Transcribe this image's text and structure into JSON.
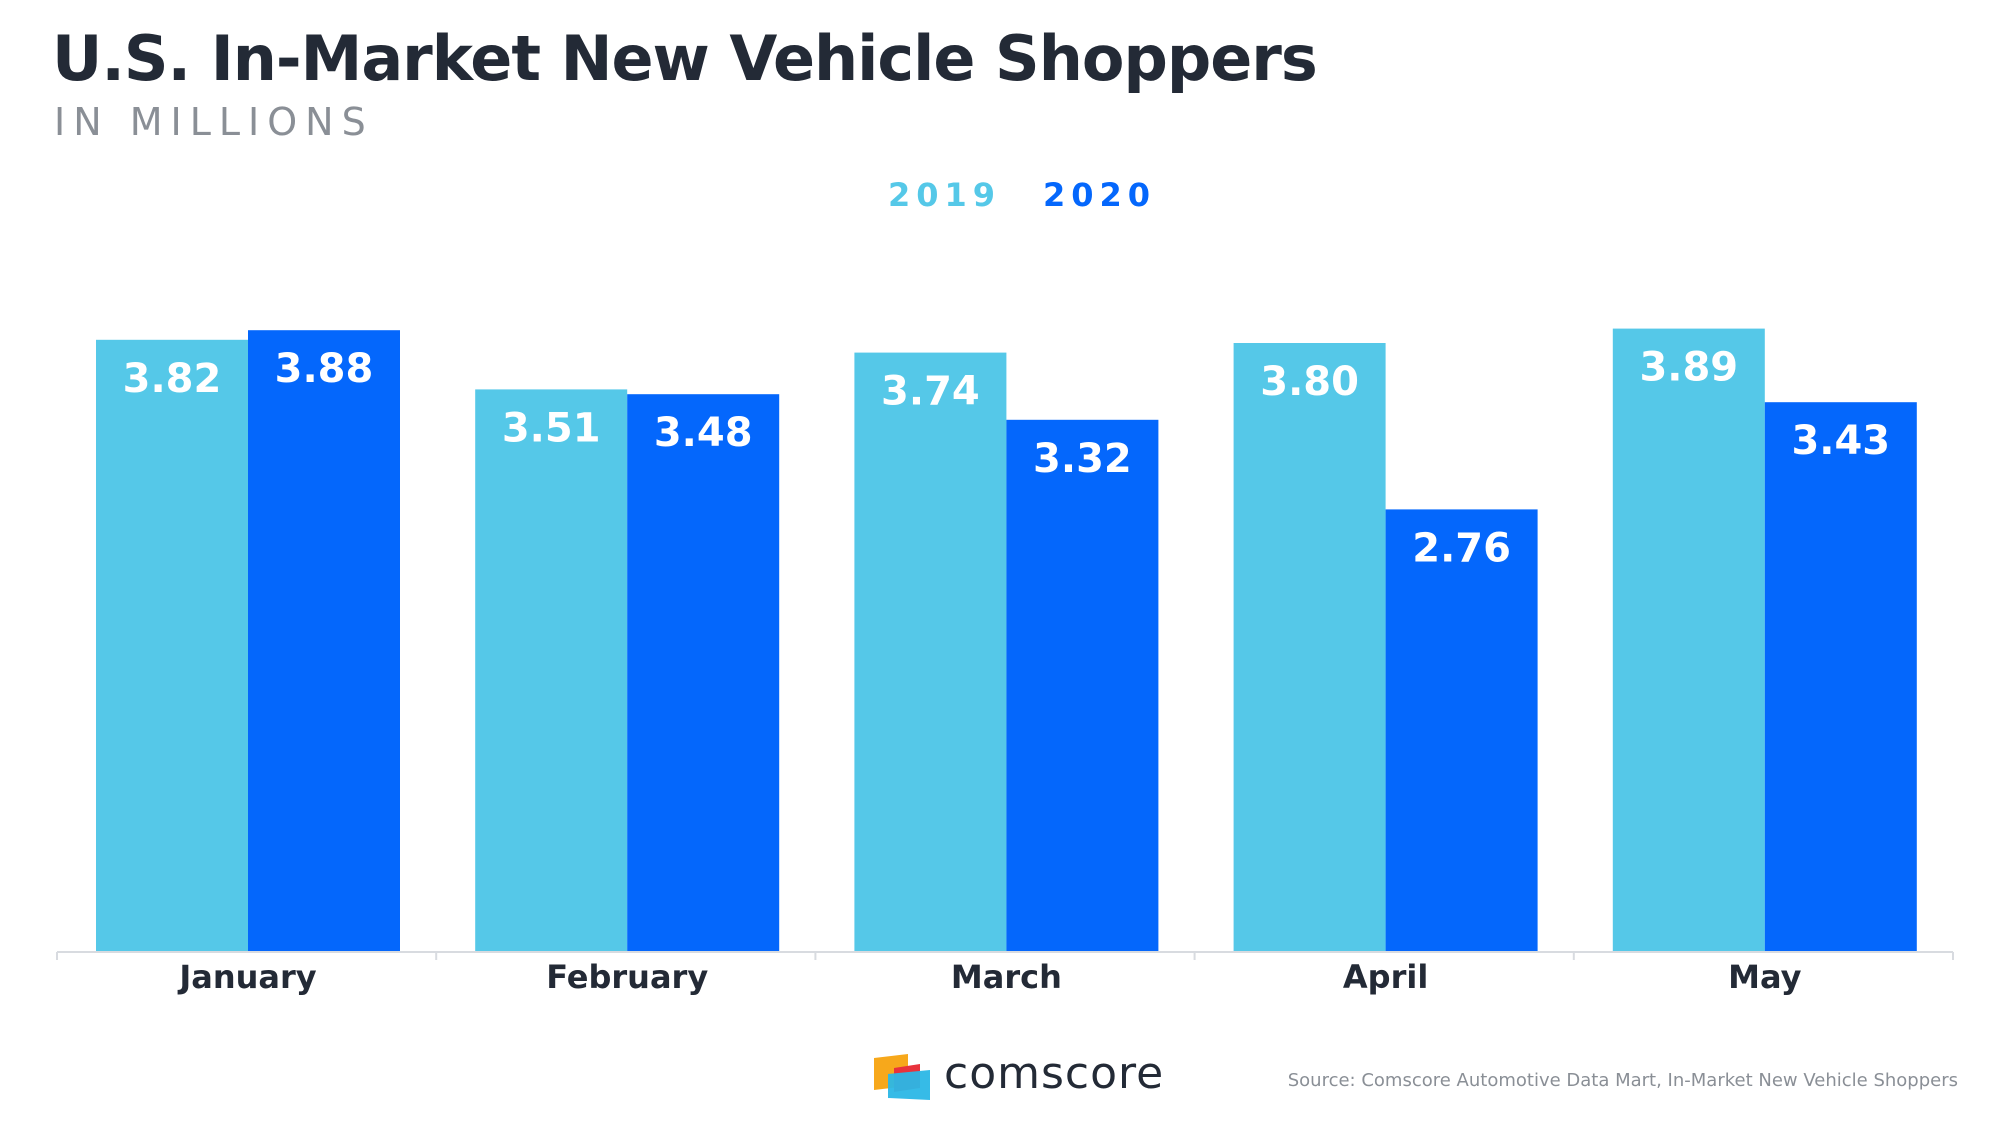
{
  "header": {
    "title": "U.S. In-Market New Vehicle Shoppers",
    "subtitle": "IN MILLIONS"
  },
  "colors": {
    "series_2019": "#55c8e8",
    "series_2020": "#0467fc",
    "axis": "#d8dbe0",
    "text": "#232a36"
  },
  "chart_data": {
    "type": "bar",
    "categories": [
      "January",
      "February",
      "March",
      "April",
      "May"
    ],
    "series": [
      {
        "name": "2019",
        "values": [
          3.82,
          3.51,
          3.74,
          3.8,
          3.89
        ]
      },
      {
        "name": "2020",
        "values": [
          3.88,
          3.48,
          3.32,
          2.76,
          3.43
        ]
      }
    ],
    "data_labels": [
      [
        "3.82",
        "3.51",
        "3.74",
        "3.80",
        "3.89"
      ],
      [
        "3.88",
        "3.48",
        "3.32",
        "2.76",
        "3.43"
      ]
    ],
    "legend_position": "top-center",
    "grid": false
  },
  "footer": {
    "logo_text": "comscore",
    "source": "Source: Comscore Automotive Data Mart, In-Market New Vehicle Shoppers"
  }
}
